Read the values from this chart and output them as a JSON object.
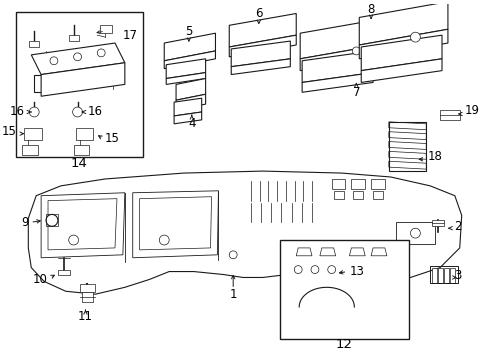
{
  "bg_color": "#ffffff",
  "line_color": "#1a1a1a",
  "text_color": "#000000",
  "fig_width": 4.89,
  "fig_height": 3.6,
  "dpi": 100,
  "lw_main": 0.8,
  "lw_thin": 0.5,
  "fontsize_label": 8.5,
  "fontsize_small": 7.0
}
